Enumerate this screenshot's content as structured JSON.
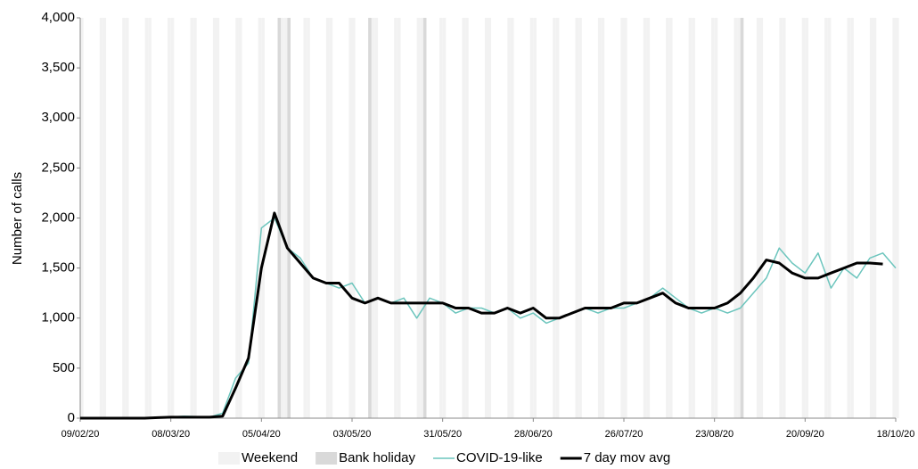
{
  "chart_data": {
    "type": "line",
    "y_label": "Number  of calls",
    "x": [
      "09/02/20",
      "13/02/20",
      "17/02/20",
      "21/02/20",
      "25/02/20",
      "29/02/20",
      "04/03/20",
      "08/03/20",
      "12/03/20",
      "16/03/20",
      "20/03/20",
      "24/03/20",
      "28/03/20",
      "01/04/20",
      "05/04/20",
      "09/04/20",
      "13/04/20",
      "17/04/20",
      "21/04/20",
      "25/04/20",
      "29/04/20",
      "03/05/20",
      "07/05/20",
      "11/05/20",
      "15/05/20",
      "19/05/20",
      "23/05/20",
      "27/05/20",
      "31/05/20",
      "04/06/20",
      "08/06/20",
      "12/06/20",
      "16/06/20",
      "20/06/20",
      "24/06/20",
      "28/06/20",
      "02/07/20",
      "06/07/20",
      "10/07/20",
      "14/07/20",
      "18/07/20",
      "22/07/20",
      "26/07/20",
      "30/07/20",
      "03/08/20",
      "07/08/20",
      "11/08/20",
      "15/08/20",
      "19/08/20",
      "23/08/20",
      "27/08/20",
      "31/08/20",
      "04/09/20",
      "08/09/20",
      "12/09/20",
      "16/09/20",
      "20/09/20",
      "24/09/20",
      "28/09/20",
      "02/10/20",
      "06/10/20",
      "10/10/20",
      "14/10/20",
      "18/10/20"
    ],
    "series": [
      {
        "name": "COVID-19-like",
        "color": "#6cc5bd",
        "values": [
          0,
          0,
          0,
          0,
          0,
          0,
          5,
          10,
          20,
          15,
          10,
          50,
          400,
          550,
          1900,
          2000,
          1700,
          1600,
          1400,
          1350,
          1300,
          1350,
          1150,
          1200,
          1150,
          1200,
          1000,
          1200,
          1150,
          1050,
          1100,
          1100,
          1050,
          1100,
          1000,
          1050,
          950,
          1000,
          1050,
          1100,
          1050,
          1100,
          1100,
          1150,
          1200,
          1300,
          1200,
          1100,
          1050,
          1100,
          1050,
          1100,
          1250,
          1400,
          1700,
          1550,
          1450,
          1650,
          1300,
          1500,
          1400,
          1600,
          1650,
          1500
        ]
      },
      {
        "name": "7 day mov avg",
        "color": "#000000",
        "values": [
          0,
          0,
          0,
          0,
          0,
          0,
          5,
          10,
          10,
          10,
          10,
          20,
          300,
          600,
          1500,
          2050,
          1700,
          1550,
          1400,
          1350,
          1350,
          1200,
          1150,
          1200,
          1150,
          1150,
          1150,
          1150,
          1150,
          1100,
          1100,
          1050,
          1050,
          1100,
          1050,
          1100,
          1000,
          1000,
          1050,
          1100,
          1100,
          1100,
          1150,
          1150,
          1200,
          1250,
          1150,
          1100,
          1100,
          1100,
          1150,
          1250,
          1400,
          1580,
          1550,
          1450,
          1400,
          1400,
          1450,
          1500,
          1550,
          1550,
          1540,
          null
        ]
      }
    ],
    "shading": [
      {
        "name": "Weekend",
        "color": "#f2f2f2"
      },
      {
        "name": "Bank holiday",
        "color": "#d9d9d9",
        "dates": [
          "10/04/20",
          "13/04/20",
          "08/05/20",
          "25/05/20",
          "31/08/20"
        ]
      }
    ],
    "xlim": [
      "09/02/20",
      "18/10/20"
    ],
    "xticks": [
      "09/02/20",
      "08/03/20",
      "05/04/20",
      "03/05/20",
      "31/05/20",
      "28/06/20",
      "26/07/20",
      "23/08/20",
      "20/09/20",
      "18/10/20"
    ],
    "ylim": [
      0,
      4000
    ],
    "yticks": [
      0,
      500,
      {
        "value": 1000,
        "label": "1,000"
      },
      {
        "value": 1500,
        "label": "1,500"
      },
      {
        "value": 2000,
        "label": "2,000"
      },
      {
        "value": 2500,
        "label": "2,500"
      },
      {
        "value": 3000,
        "label": "3,000"
      },
      {
        "value": 3500,
        "label": "3,500"
      },
      {
        "value": 4000,
        "label": "4,000"
      }
    ]
  }
}
